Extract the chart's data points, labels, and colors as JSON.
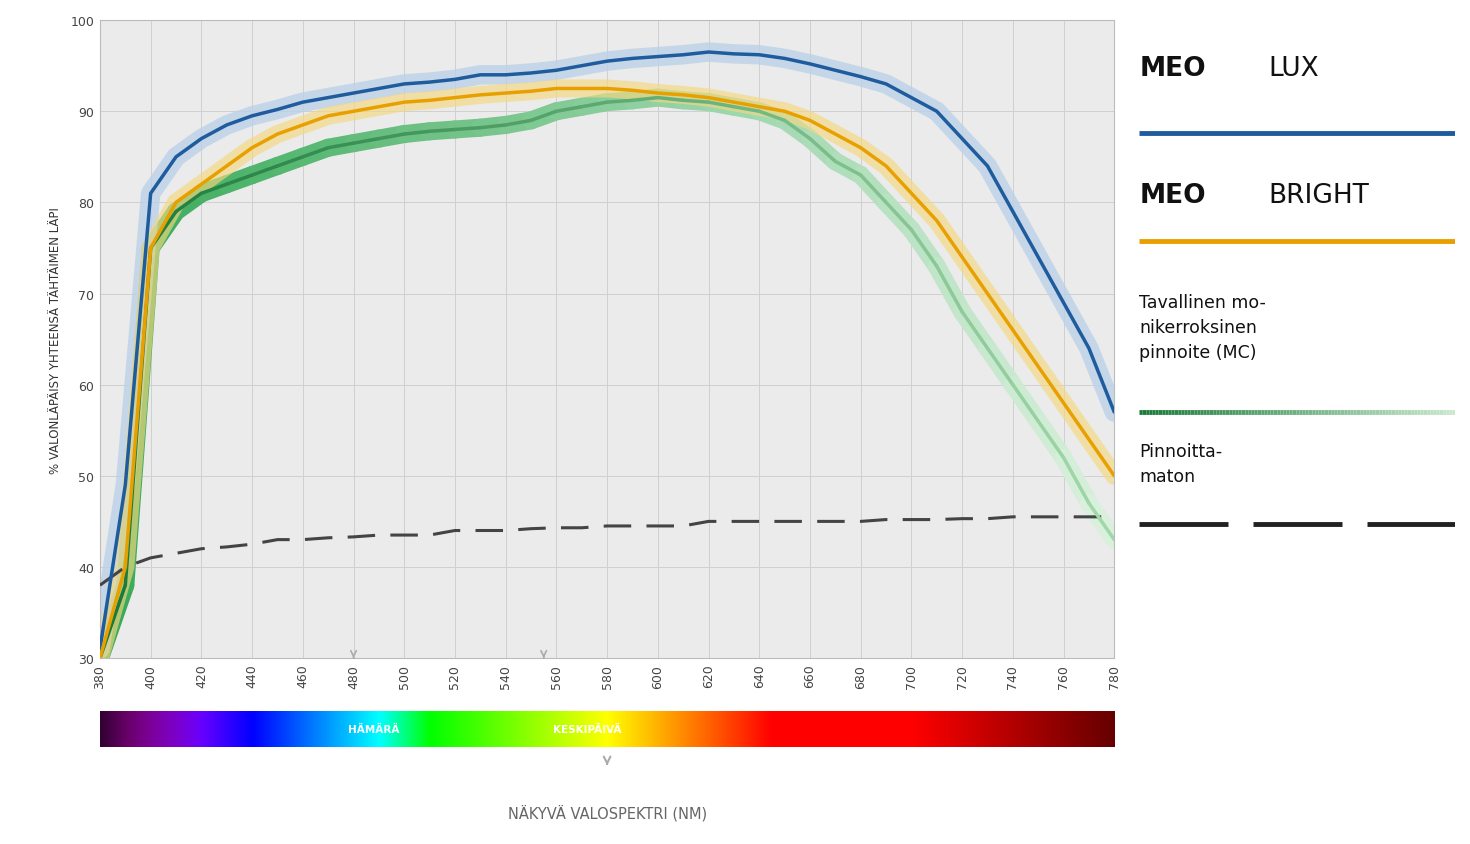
{
  "x": [
    380,
    390,
    400,
    410,
    420,
    430,
    440,
    450,
    460,
    470,
    480,
    490,
    500,
    510,
    520,
    530,
    540,
    550,
    560,
    570,
    580,
    590,
    600,
    610,
    620,
    630,
    640,
    650,
    660,
    670,
    680,
    690,
    700,
    710,
    720,
    730,
    740,
    750,
    760,
    770,
    780
  ],
  "meolux": [
    31,
    49,
    81,
    85,
    87,
    88.5,
    89.5,
    90.2,
    91,
    91.5,
    92,
    92.5,
    93,
    93.2,
    93.5,
    94,
    94,
    94.2,
    94.5,
    95,
    95.5,
    95.8,
    96,
    96.2,
    96.5,
    96.3,
    96.2,
    95.8,
    95.2,
    94.5,
    93.8,
    93,
    91.5,
    90,
    87,
    84,
    79,
    74,
    69,
    64,
    57
  ],
  "meobright": [
    30,
    40,
    75,
    80,
    82,
    84,
    86,
    87.5,
    88.5,
    89.5,
    90,
    90.5,
    91,
    91.2,
    91.5,
    91.8,
    92,
    92.2,
    92.5,
    92.5,
    92.5,
    92.3,
    92,
    91.8,
    91.5,
    91,
    90.5,
    90,
    89,
    87.5,
    86,
    84,
    81,
    78,
    74,
    70,
    66,
    62,
    58,
    54,
    50
  ],
  "mc": [
    30,
    38,
    75,
    79,
    81,
    82,
    83,
    84,
    85,
    86,
    86.5,
    87,
    87.5,
    87.8,
    88,
    88.2,
    88.5,
    89,
    90,
    90.5,
    91,
    91.2,
    91.5,
    91.2,
    91,
    90.5,
    90,
    89,
    87,
    84.5,
    83,
    80,
    77,
    73,
    68,
    64,
    60,
    56,
    52,
    47,
    43
  ],
  "uncoated": [
    38,
    40,
    41,
    41.5,
    42,
    42.2,
    42.5,
    43,
    43,
    43.2,
    43.3,
    43.5,
    43.5,
    43.5,
    44,
    44,
    44,
    44.2,
    44.3,
    44.3,
    44.5,
    44.5,
    44.5,
    44.5,
    45,
    45,
    45,
    45,
    45,
    45,
    45,
    45.2,
    45.2,
    45.2,
    45.3,
    45.3,
    45.5,
    45.5,
    45.5,
    45.5,
    45.5
  ],
  "meolux_line_color": "#1f5c9e",
  "meolux_halo_color": "#b8d0e8",
  "meobright_line_color": "#e8a000",
  "meobright_halo_color": "#f5d880",
  "mc_color_start": "#1a7a3a",
  "mc_color_end": "#c0e8c8",
  "uncoated_color": "#444444",
  "bg_color": "#ebebeb",
  "grid_color": "#d0d0d0",
  "ylim": [
    30,
    100
  ],
  "xlim": [
    380,
    780
  ],
  "yticks": [
    30,
    40,
    50,
    60,
    70,
    80,
    90,
    100
  ],
  "xticks": [
    380,
    400,
    420,
    440,
    460,
    480,
    500,
    520,
    540,
    560,
    580,
    600,
    620,
    640,
    660,
    680,
    700,
    720,
    740,
    760,
    780
  ],
  "ylabel": "% VALONLÄPÄISY YHTEENSÄ TÄHTÄIMEN LÄPI",
  "xlabel_main": "NÄKYVÄ VALOSPEKTRI (NM)",
  "label_hamara": "HÄMÄRÄ",
  "label_keskipaiva": "KESKIPÄIVÄ"
}
